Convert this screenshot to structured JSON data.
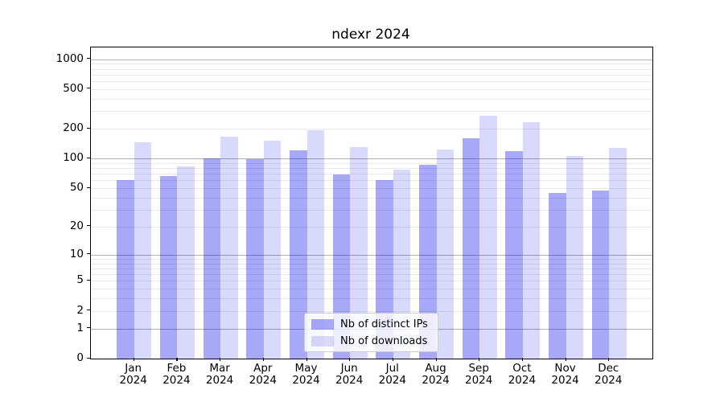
{
  "chart_data": {
    "type": "bar",
    "title": "ndexr 2024",
    "categories": [
      "Jan 2024",
      "Feb 2024",
      "Mar 2024",
      "Apr 2024",
      "May 2024",
      "Jun 2024",
      "Jul 2024",
      "Aug 2024",
      "Sep 2024",
      "Oct 2024",
      "Nov 2024",
      "Dec 2024"
    ],
    "series": [
      {
        "name": "Nb of distinct IPs",
        "color": "rgba(0,0,235,0.34)",
        "values": [
          61,
          67,
          100,
          99,
          122,
          69,
          61,
          86,
          160,
          118,
          45,
          47
        ]
      },
      {
        "name": "Nb of downloads",
        "color": "rgba(0,0,235,0.15)",
        "values": [
          145,
          83,
          166,
          151,
          192,
          130,
          77,
          123,
          268,
          233,
          106,
          128
        ]
      }
    ],
    "y_axis": {
      "scale": "log1p",
      "tick_values": [
        1000,
        500,
        200,
        100,
        50,
        20,
        10,
        5,
        2,
        1,
        0
      ],
      "tick_labels": [
        "1000",
        "500",
        "200",
        "100",
        "50",
        "20",
        "10",
        "5",
        "2",
        "1",
        "0"
      ],
      "limit_top": 1308,
      "major_gridlines": [
        1,
        10,
        100,
        1000
      ],
      "minor_gridlines": [
        2,
        3,
        4,
        5,
        6,
        7,
        8,
        9,
        20,
        30,
        40,
        50,
        60,
        70,
        80,
        90,
        200,
        300,
        400,
        500,
        600,
        700,
        800,
        900
      ]
    },
    "grid": true,
    "legend_position": "lower center",
    "colors": {
      "major_grid": "#b0b0b0",
      "minor_grid": "#e9e9e9",
      "axis": "#000000"
    }
  }
}
